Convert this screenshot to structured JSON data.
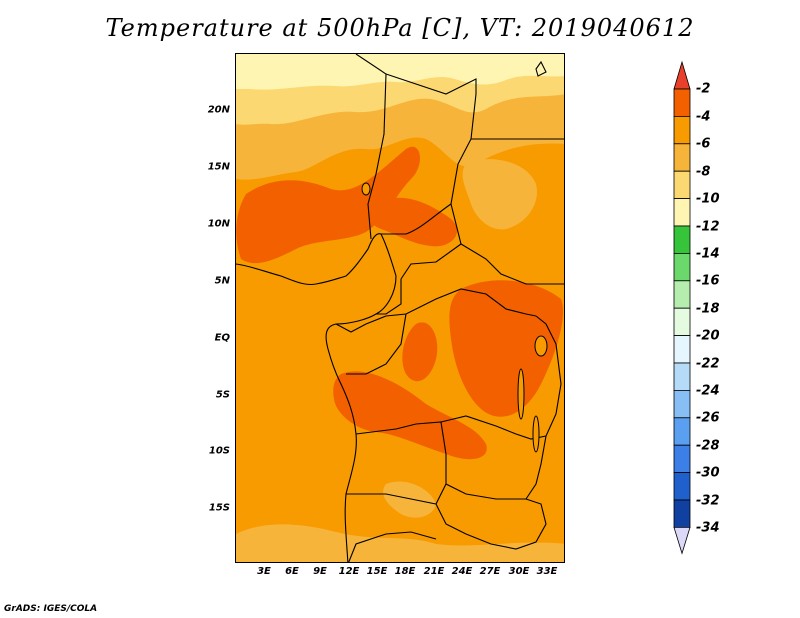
{
  "title": "Temperature at 500hPa [C], VT: 2019040612",
  "credit": "GrADS: IGES/COLA",
  "map": {
    "lat_labels": [
      "20N",
      "15N",
      "10N",
      "5N",
      "EQ",
      "5S",
      "10S",
      "15S"
    ],
    "lon_labels": [
      "3E",
      "6E",
      "9E",
      "12E",
      "15E",
      "18E",
      "21E",
      "24E",
      "27E",
      "30E",
      "33E"
    ]
  },
  "colorbar": {
    "labels": [
      "-2",
      "-4",
      "-6",
      "-8",
      "-10",
      "-12",
      "-14",
      "-16",
      "-18",
      "-20",
      "-22",
      "-24",
      "-26",
      "-28",
      "-30",
      "-32",
      "-34"
    ],
    "colors": {
      "above_-2": "#e8402a",
      "-4_to_-2": "#f36000",
      "-6_to_-4": "#f79b00",
      "-8_to_-6": "#f7b43a",
      "-10_to_-8": "#fcd872",
      "-12_to_-10": "#fff5b2",
      "-14_to_-12": "#35c43a",
      "-16_to_-14": "#6ad86a",
      "-18_to_-16": "#b5edaf",
      "-20_to_-18": "#e4fbe0",
      "-22_to_-20": "#e5f6ff",
      "-24_to_-22": "#b6dbf8",
      "-26_to_-24": "#87bff4",
      "-28_to_-26": "#5b9ff0",
      "-30_to_-28": "#3c7fe6",
      "-32_to_-30": "#2060cc",
      "-34_to_-32": "#1040a0",
      "below_-34": "#0c1878",
      "below_arrow": "#dcd8f8"
    }
  }
}
